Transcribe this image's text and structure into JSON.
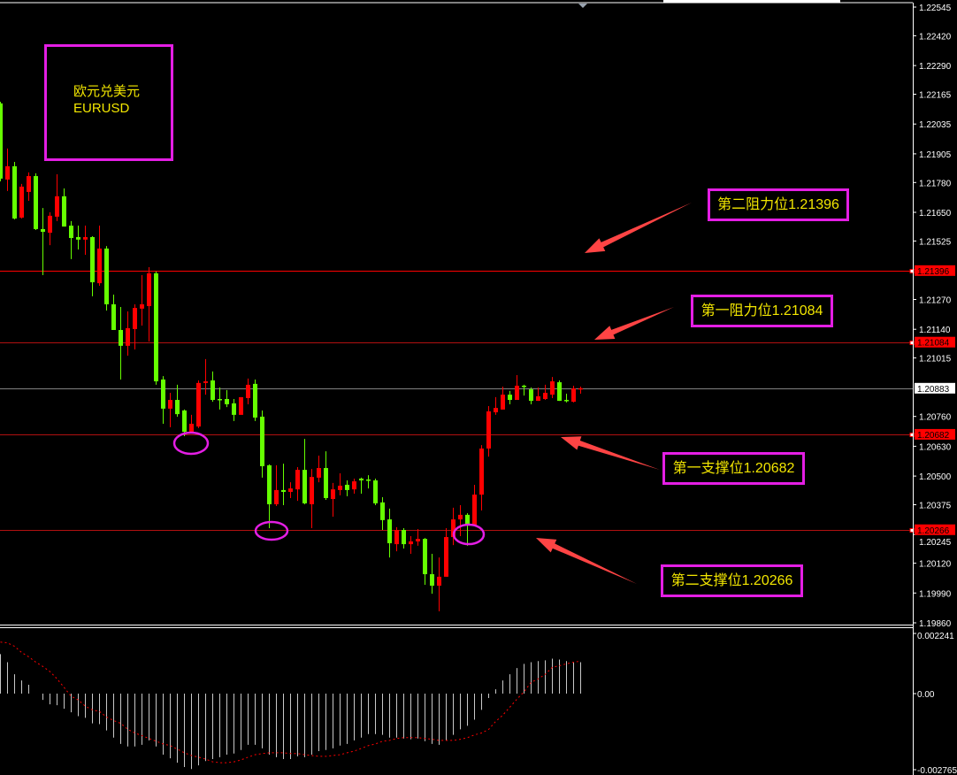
{
  "title_box": {
    "name_cn": "欧元兑美元",
    "symbol": "EURUSD"
  },
  "annotations": [
    {
      "text": "第二阻力位1.21396",
      "level": 1.21396
    },
    {
      "text": "第一阻力位1.21084",
      "level": 1.21084
    },
    {
      "text": "第一支撑位1.20682",
      "level": 1.20682
    },
    {
      "text": "第二支撑位1.20266",
      "level": 1.20266
    }
  ],
  "colors": {
    "background": "#000000",
    "bull_candle": "#ff0000",
    "bear_candle": "#66ff00",
    "level_line": "#ff0000",
    "current_price_line": "#808080",
    "annotation_border": "#e41ee4",
    "annotation_text": "#f2e600",
    "arrow": "#ff4444",
    "macd_histogram": "#c8c8c8",
    "macd_signal": "#ff0000"
  },
  "chart_data": [
    {
      "type": "candlestick",
      "symbol": "EURUSD",
      "ylim": [
        1.1986,
        1.22545
      ],
      "y_ticks": [
        "1.22545",
        "1.22420",
        "1.22290",
        "1.22165",
        "1.22035",
        "1.21905",
        "1.21780",
        "1.21650",
        "1.21525",
        "1.21270",
        "1.21140",
        "1.21015",
        "1.20760",
        "1.20630",
        "1.20500",
        "1.20375",
        "1.20245",
        "1.20120",
        "1.19990",
        "1.19860"
      ],
      "price_labels": [
        {
          "value": "1.21396",
          "style": "level"
        },
        {
          "value": "1.21084",
          "style": "level"
        },
        {
          "value": "1.20883",
          "style": "current"
        },
        {
          "value": "1.20682",
          "style": "level"
        },
        {
          "value": "1.20266",
          "style": "level"
        }
      ],
      "ohlc": [
        [
          1.22125,
          1.22132,
          1.21785,
          1.21797
        ],
        [
          1.21793,
          1.21928,
          1.21743,
          1.21851
        ],
        [
          1.21851,
          1.2187,
          1.21619,
          1.21623
        ],
        [
          1.21627,
          1.21774,
          1.21623,
          1.21762
        ],
        [
          1.21739,
          1.21824,
          1.217,
          1.21808
        ],
        [
          1.21808,
          1.2182,
          1.21573,
          1.21577
        ],
        [
          1.21577,
          1.21669,
          1.21376,
          1.21565
        ],
        [
          1.21561,
          1.2165,
          1.21507,
          1.21635
        ],
        [
          1.21631,
          1.21816,
          1.21612,
          1.2172
        ],
        [
          1.2172,
          1.21754,
          1.21588,
          1.21588
        ],
        [
          1.21592,
          1.21612,
          1.21446,
          1.21538
        ],
        [
          1.21542,
          1.21592,
          1.21488,
          1.21531
        ],
        [
          1.21531,
          1.21592,
          1.21465,
          1.21542
        ],
        [
          1.21542,
          1.21546,
          1.21284,
          1.21345
        ],
        [
          1.21341,
          1.21592,
          1.2133,
          1.21492
        ],
        [
          1.21492,
          1.21503,
          1.21222,
          1.21249
        ],
        [
          1.21249,
          1.21291,
          1.21137,
          1.21137
        ],
        [
          1.21137,
          1.21237,
          1.20921,
          1.21068
        ],
        [
          1.21068,
          1.21218,
          1.21025,
          1.21145
        ],
        [
          1.21141,
          1.21249,
          1.21052,
          1.21233
        ],
        [
          1.2123,
          1.21376,
          1.21156,
          1.21249
        ],
        [
          1.21241,
          1.21411,
          1.21087,
          1.21384
        ],
        [
          1.21384,
          1.21392,
          1.20898,
          1.20913
        ],
        [
          1.20921,
          1.20936,
          1.20728,
          1.20794
        ],
        [
          1.20794,
          1.20863,
          1.20713,
          1.20832
        ],
        [
          1.20832,
          1.20898,
          1.20759,
          1.2077
        ],
        [
          1.20786,
          1.2079,
          1.20674,
          1.20693
        ],
        [
          1.20693,
          1.20767,
          1.20686,
          1.20728
        ],
        [
          1.20716,
          1.20917,
          1.20709,
          1.20906
        ],
        [
          1.20906,
          1.2101,
          1.20855,
          1.20913
        ],
        [
          1.20917,
          1.20956,
          1.20824,
          1.20832
        ],
        [
          1.20836,
          1.20886,
          1.2079,
          1.20832
        ],
        [
          1.20836,
          1.20875,
          1.20801,
          1.20813
        ],
        [
          1.20817,
          1.20836,
          1.2074,
          1.20767
        ],
        [
          1.20767,
          1.20844,
          1.20767,
          1.20844
        ],
        [
          1.2084,
          1.20925,
          1.20813,
          1.20898
        ],
        [
          1.20902,
          1.20921,
          1.2074,
          1.20755
        ],
        [
          1.20759,
          1.20786,
          1.20493,
          1.20543
        ],
        [
          1.20547,
          1.20551,
          1.20273,
          1.20377
        ],
        [
          1.20377,
          1.20547,
          1.20369,
          1.20439
        ],
        [
          1.20439,
          1.20554,
          1.20373,
          1.20431
        ],
        [
          1.20431,
          1.20473,
          1.20404,
          1.20446
        ],
        [
          1.20442,
          1.20539,
          1.20392,
          1.20527
        ],
        [
          1.20527,
          1.20662,
          1.20377,
          1.20381
        ],
        [
          1.20377,
          1.20531,
          1.20273,
          1.20496
        ],
        [
          1.20493,
          1.20589,
          1.20473,
          1.20535
        ],
        [
          1.20535,
          1.20608,
          1.20396,
          1.20404
        ],
        [
          1.204,
          1.2047,
          1.20323,
          1.20442
        ],
        [
          1.20439,
          1.20512,
          1.20416,
          1.20458
        ],
        [
          1.20462,
          1.20481,
          1.20412,
          1.20439
        ],
        [
          1.20442,
          1.20489,
          1.20423,
          1.20477
        ],
        [
          1.20489,
          1.20493,
          1.20423,
          1.20481
        ],
        [
          1.20485,
          1.20504,
          1.20446,
          1.20481
        ],
        [
          1.20481,
          1.20489,
          1.20373,
          1.20381
        ],
        [
          1.20385,
          1.20408,
          1.20265,
          1.20308
        ],
        [
          1.20311,
          1.20358,
          1.20145,
          1.20207
        ],
        [
          1.20203,
          1.20277,
          1.20172,
          1.20265
        ],
        [
          1.20265,
          1.20273,
          1.20184,
          1.20203
        ],
        [
          1.20203,
          1.20238,
          1.20161,
          1.20215
        ],
        [
          1.20215,
          1.20269,
          1.20196,
          1.20226
        ],
        [
          1.20226,
          1.2023,
          1.20026,
          1.20072
        ],
        [
          1.20072,
          1.20161,
          1.19987,
          1.20022
        ],
        [
          1.20022,
          1.20145,
          1.1991,
          1.20061
        ],
        [
          1.20061,
          1.20273,
          1.20061,
          1.20234
        ],
        [
          1.20234,
          1.20362,
          1.20199,
          1.20311
        ],
        [
          1.20311,
          1.20373,
          1.20238,
          1.20331
        ],
        [
          1.20331,
          1.20338,
          1.20196,
          1.20284
        ],
        [
          1.20284,
          1.20462,
          1.20284,
          1.20419
        ],
        [
          1.20419,
          1.20635,
          1.2035,
          1.2062
        ],
        [
          1.2062,
          1.20805,
          1.20585,
          1.20782
        ],
        [
          1.20778,
          1.20844,
          1.20767,
          1.20797
        ],
        [
          1.2079,
          1.2089,
          1.2079,
          1.20855
        ],
        [
          1.20855,
          1.20871,
          1.20813,
          1.20832
        ],
        [
          1.20832,
          1.2094,
          1.20832,
          1.20894
        ],
        [
          1.20894,
          1.20898,
          1.20851,
          1.2089
        ],
        [
          1.20878,
          1.20886,
          1.20813,
          1.20828
        ],
        [
          1.20828,
          1.20886,
          1.20828,
          1.20848
        ],
        [
          1.20836,
          1.20898,
          1.20832,
          1.20863
        ],
        [
          1.20855,
          1.20932,
          1.2084,
          1.20913
        ],
        [
          1.20909,
          1.20917,
          1.20828,
          1.20828
        ],
        [
          1.20832,
          1.20859,
          1.20821,
          1.20828
        ],
        [
          1.20824,
          1.20894,
          1.20821,
          1.20882
        ],
        [
          1.20882,
          1.2089,
          1.20859,
          1.20883
        ]
      ],
      "horizontal_levels": [
        1.21396,
        1.21084,
        1.20883,
        1.20682,
        1.20266
      ],
      "grid": false
    },
    {
      "type": "bar",
      "indicator": "MACD",
      "ylim": [
        -0.002765,
        0.002241
      ],
      "y_ticks": [
        "0.002241",
        "0.00",
        "-0.002765"
      ],
      "histogram": [
        0.00147,
        0.00117,
        0.00072,
        0.00049,
        0.00033,
        0,
        -0.00023,
        -0.00039,
        -0.00042,
        -0.00055,
        -0.00068,
        -0.00082,
        -0.00088,
        -0.00108,
        -0.00111,
        -0.00134,
        -0.0016,
        -0.00183,
        -0.00192,
        -0.00192,
        -0.00186,
        -0.0017,
        -0.00192,
        -0.00222,
        -0.00235,
        -0.00251,
        -0.00267,
        -0.00274,
        -0.00261,
        -0.00245,
        -0.00238,
        -0.00231,
        -0.00222,
        -0.00218,
        -0.00205,
        -0.00186,
        -0.00186,
        -0.00199,
        -0.00222,
        -0.00231,
        -0.00238,
        -0.00238,
        -0.00228,
        -0.00231,
        -0.00222,
        -0.00209,
        -0.00205,
        -0.00199,
        -0.00189,
        -0.00183,
        -0.0017,
        -0.0016,
        -0.00147,
        -0.00147,
        -0.0015,
        -0.0016,
        -0.0016,
        -0.00163,
        -0.00166,
        -0.00163,
        -0.00173,
        -0.00183,
        -0.00186,
        -0.0017,
        -0.0015,
        -0.0013,
        -0.00117,
        -0.00095,
        -0.00059,
        -0.00016,
        0.00016,
        0.00049,
        0.00072,
        0.00095,
        0.00111,
        0.00117,
        0.00121,
        0.00124,
        0.0013,
        0.00127,
        0.00121,
        0.00117,
        0.00117
      ],
      "signal": [
        0.00192,
        0.00189,
        0.00176,
        0.00153,
        0.00137,
        0.00117,
        0.00101,
        0.00082,
        0.00055,
        0.00023,
        -0.0001,
        -0.00023,
        -0.00046,
        -0.00059,
        -0.00065,
        -0.00085,
        -0.00098,
        -0.00108,
        -0.0013,
        -0.00143,
        -0.00153,
        -0.00163,
        -0.00173,
        -0.00183,
        -0.00189,
        -0.00202,
        -0.00215,
        -0.00225,
        -0.00231,
        -0.00238,
        -0.00248,
        -0.00251,
        -0.00251,
        -0.00248,
        -0.00241,
        -0.00231,
        -0.00222,
        -0.00218,
        -0.00215,
        -0.00215,
        -0.00215,
        -0.00218,
        -0.00218,
        -0.00222,
        -0.00225,
        -0.00228,
        -0.00228,
        -0.00225,
        -0.00222,
        -0.00215,
        -0.00209,
        -0.00199,
        -0.00189,
        -0.00183,
        -0.00173,
        -0.0017,
        -0.00163,
        -0.0016,
        -0.0016,
        -0.0016,
        -0.00163,
        -0.00166,
        -0.0017,
        -0.0017,
        -0.0017,
        -0.00166,
        -0.0016,
        -0.0015,
        -0.00143,
        -0.0013,
        -0.00101,
        -0.00078,
        -0.00049,
        -0.0002,
        7e-05,
        0.00042,
        0.00055,
        0.00072,
        0.00098,
        0.00104,
        0.00111,
        0.00117,
        0.00121
      ]
    }
  ]
}
